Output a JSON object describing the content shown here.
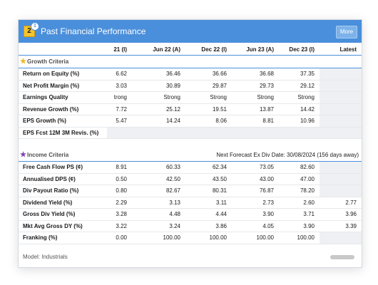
{
  "window": {
    "title": "Past Financial Performance",
    "badge_number": "2",
    "badge_sub": "1",
    "more_label": "More"
  },
  "columns": [
    "21 (I)",
    "Jun 22 (A)",
    "Dec 22 (I)",
    "Jun 23 (A)",
    "Dec 23 (I)",
    "Latest"
  ],
  "growth": {
    "title": "Growth Criteria",
    "rows": [
      {
        "label": "Return on Equity (%)",
        "values": [
          "6.62",
          "36.46",
          "36.66",
          "36.68",
          "37.35",
          ""
        ]
      },
      {
        "label": "Net Profit Margin (%)",
        "values": [
          "3.03",
          "30.89",
          "29.87",
          "29.73",
          "29.12",
          ""
        ]
      },
      {
        "label": "Earnings Quality",
        "values": [
          "trong",
          "Strong",
          "Strong",
          "Strong",
          "Strong",
          ""
        ]
      },
      {
        "label": "Revenue Growth (%)",
        "values": [
          "7.72",
          "25.12",
          "19.51",
          "13.87",
          "14.42",
          ""
        ]
      },
      {
        "label": "EPS Growth (%)",
        "values": [
          "5.47",
          "14.24",
          "8.06",
          "8.81",
          "10.96",
          ""
        ]
      },
      {
        "label": "EPS Fcst 12M 3M Revis. (%)",
        "values": [
          "",
          "",
          "",
          "",
          "",
          ""
        ]
      }
    ]
  },
  "income": {
    "title": "Income Criteria",
    "note": "Next Forecast Ex Div Date: 30/08/2024 (156 days away)",
    "rows": [
      {
        "label": "Free Cash Flow PS (¢)",
        "values": [
          "8.91",
          "60.33",
          "62.34",
          "73.05",
          "82.60",
          ""
        ]
      },
      {
        "label": "Annualised DPS (¢)",
        "values": [
          "0.50",
          "42.50",
          "43.50",
          "43.00",
          "47.00",
          ""
        ]
      },
      {
        "label": "Div Payout Ratio (%)",
        "values": [
          "0.80",
          "82.67",
          "80.31",
          "76.87",
          "78.20",
          ""
        ]
      },
      {
        "label": "Dividend Yield (%)",
        "values": [
          "2.29",
          "3.13",
          "3.11",
          "2.73",
          "2.60",
          "2.77"
        ]
      },
      {
        "label": "Gross Div Yield (%)",
        "values": [
          "3.28",
          "4.48",
          "4.44",
          "3.90",
          "3.71",
          "3.96"
        ]
      },
      {
        "label": "Mkt Avg Gross DY (%)",
        "values": [
          "3.22",
          "3.24",
          "3.86",
          "4.05",
          "3.90",
          "3.39"
        ]
      },
      {
        "label": "Franking (%)",
        "values": [
          "0.00",
          "100.00",
          "100.00",
          "100.00",
          "100.00",
          ""
        ]
      }
    ]
  },
  "footer": {
    "model": "Model: Industrials"
  },
  "colors": {
    "titlebar": "#4a8fdb",
    "badge": "#f4c430",
    "star_growth": "#f2b61c",
    "star_income": "#7b3fb0",
    "shade": "#eef0f3"
  },
  "icons": {
    "growth": "star-icon",
    "income": "star-icon",
    "badge": "badge-icon"
  }
}
